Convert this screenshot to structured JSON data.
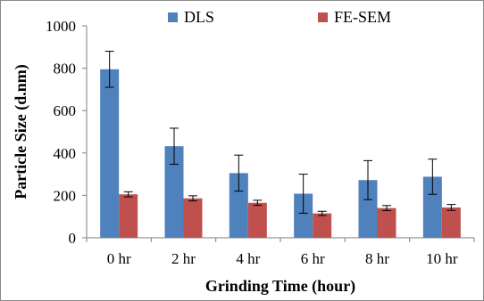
{
  "chart_data": {
    "type": "bar",
    "title": "",
    "xlabel": "Grinding Time (hour)",
    "ylabel": "Particle Size (d.nm)",
    "categories": [
      "0 hr",
      "2 hr",
      "4 hr",
      "6 hr",
      "8 hr",
      "10 hr"
    ],
    "ylim": [
      0,
      1000
    ],
    "yticks": [
      0,
      200,
      400,
      600,
      800,
      1000
    ],
    "grid": false,
    "legend_position": "top",
    "series": [
      {
        "name": "DLS",
        "color": "#4f81bd",
        "values": [
          795,
          432,
          305,
          208,
          272,
          288
        ],
        "errors": [
          85,
          85,
          85,
          92,
          92,
          83
        ]
      },
      {
        "name": "FE-SEM",
        "color": "#c0504d",
        "values": [
          205,
          186,
          165,
          115,
          140,
          143
        ],
        "errors": [
          12,
          12,
          12,
          10,
          12,
          14
        ]
      }
    ]
  }
}
